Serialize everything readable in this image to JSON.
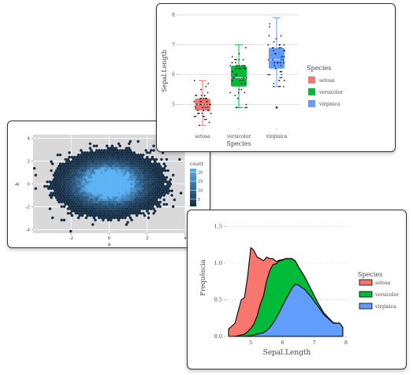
{
  "chart_data": [
    {
      "type": "hexbin",
      "xlabel": "a",
      "ylabel": "b",
      "x_ticks": [
        "-2",
        "0",
        "2",
        "4"
      ],
      "x_tick_values": [
        -2,
        0,
        2,
        4
      ],
      "y_ticks": [
        "-4",
        "-2",
        "0",
        "2",
        "4"
      ],
      "y_tick_values": [
        -4,
        -2,
        0,
        2,
        4
      ],
      "xlim": [
        -4,
        4
      ],
      "ylim": [
        -4.3,
        4.3
      ],
      "legend_title": "count",
      "legend_ticks": [
        "20",
        "15",
        "10",
        "5"
      ],
      "legend_tick_values": [
        20,
        15,
        10,
        5
      ],
      "count_range": [
        1,
        22
      ],
      "color_low": "#132b43",
      "color_high": "#56b1f7",
      "panel_bg": "#d9d9d9",
      "distribution": "bivariate normal, mean 0, sd 1",
      "legend_placement": "right",
      "grid": true
    },
    {
      "type": "boxplot",
      "xlabel": "Species",
      "ylabel": "Sepal.Length",
      "categories": [
        "setosa",
        "versicolor",
        "virginica"
      ],
      "y_ticks": [
        "5",
        "6",
        "7",
        "8"
      ],
      "y_tick_values": [
        5,
        6,
        7,
        8
      ],
      "ylim": [
        4.2,
        8.05
      ],
      "legend_title": "Species",
      "legend": [
        "setosa",
        "versicolor",
        "virginica"
      ],
      "colors": [
        "#f8766d",
        "#00ba38",
        "#619cff"
      ],
      "boxes": [
        {
          "min": 4.3,
          "q1": 4.8,
          "median": 5.0,
          "q3": 5.2,
          "max": 5.8,
          "outliers": []
        },
        {
          "min": 4.9,
          "q1": 5.6,
          "median": 5.9,
          "q3": 6.3,
          "max": 7.0,
          "outliers": []
        },
        {
          "min": 5.6,
          "q1": 6.2,
          "median": 6.5,
          "q3": 6.9,
          "max": 7.9,
          "outliers": [
            4.9
          ]
        }
      ],
      "jitter_points": true,
      "legend_placement": "right",
      "grid": "horizontal"
    },
    {
      "type": "area",
      "subtype": "density",
      "xlabel": "Sepal.Length",
      "ylabel": "Frequência",
      "x_ticks": [
        "5",
        "6",
        "7",
        "8"
      ],
      "x_tick_values": [
        5,
        6,
        7,
        8
      ],
      "y_ticks": [
        "0.0",
        "0.5",
        "1.0",
        "1.5"
      ],
      "y_tick_values": [
        0,
        0.5,
        1,
        1.5
      ],
      "xlim": [
        4.2,
        8.1
      ],
      "ylim": [
        0,
        1.6
      ],
      "legend_title": "Species",
      "legend": [
        "setosa",
        "versicolor",
        "virginica"
      ],
      "colors": [
        "#f8766d",
        "#00ba38",
        "#619cff"
      ],
      "stacked": true,
      "x": [
        4.3,
        4.5,
        4.7,
        4.8,
        4.9,
        5.0,
        5.1,
        5.2,
        5.3,
        5.4,
        5.5,
        5.6,
        5.7,
        5.8,
        5.9,
        6.0,
        6.1,
        6.2,
        6.3,
        6.4,
        6.5,
        6.7,
        6.9,
        7.1,
        7.3,
        7.5,
        7.6,
        7.7,
        7.8,
        7.9
      ],
      "series": [
        {
          "name": "setosa",
          "values": [
            0.1,
            0.18,
            0.48,
            0.5,
            0.75,
            1.1,
            1.0,
            0.8,
            0.62,
            0.48,
            0.32,
            0.16,
            0.08,
            0.03,
            0.01,
            0.005,
            0.001,
            0,
            0,
            0,
            0,
            0,
            0,
            0,
            0,
            0,
            0,
            0,
            0,
            0
          ]
        },
        {
          "name": "versicolor",
          "values": [
            0,
            0,
            0.02,
            0.03,
            0.06,
            0.1,
            0.15,
            0.25,
            0.4,
            0.5,
            0.68,
            0.78,
            0.8,
            0.74,
            0.7,
            0.62,
            0.56,
            0.48,
            0.4,
            0.32,
            0.25,
            0.17,
            0.1,
            0.05,
            0.02,
            0.01,
            0.005,
            0.002,
            0.001,
            0
          ]
        },
        {
          "name": "virginica",
          "values": [
            0,
            0,
            0,
            0,
            0.005,
            0.01,
            0.02,
            0.03,
            0.04,
            0.05,
            0.08,
            0.12,
            0.18,
            0.25,
            0.33,
            0.42,
            0.5,
            0.58,
            0.66,
            0.71,
            0.7,
            0.64,
            0.54,
            0.42,
            0.3,
            0.22,
            0.18,
            0.18,
            0.18,
            0.12
          ]
        }
      ],
      "legend_placement": "right",
      "grid": "horizontal"
    }
  ]
}
